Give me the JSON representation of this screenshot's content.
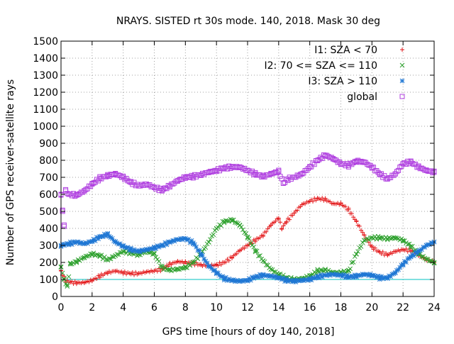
{
  "chart_data": {
    "type": "scatter",
    "title": "NRAYS. SISTED rt 30s mode. 140, 2018. Mask 30 deg",
    "xlabel": "GPS time [hours of doy 140, 2018]",
    "ylabel": "Number of GPS receiver-satellite rays",
    "xlim": [
      0,
      24
    ],
    "ylim": [
      0,
      1500
    ],
    "x_ticks": [
      0,
      2,
      4,
      6,
      8,
      10,
      12,
      14,
      16,
      18,
      20,
      22,
      24
    ],
    "y_ticks": [
      0,
      100,
      200,
      300,
      400,
      500,
      600,
      700,
      800,
      900,
      1000,
      1100,
      1200,
      1300,
      1400,
      1500
    ],
    "grid": true,
    "legend_position": "top-right",
    "reference_line": {
      "y": 100,
      "color": "#00c0c0"
    },
    "series": [
      {
        "name": "I1: SZA < 70",
        "marker": "+",
        "color": "#e41a1c",
        "points": [
          [
            0,
            150
          ],
          [
            0.3,
            90
          ],
          [
            0.6,
            85
          ],
          [
            1,
            80
          ],
          [
            1.5,
            82
          ],
          [
            2,
            95
          ],
          [
            2.5,
            120
          ],
          [
            3,
            140
          ],
          [
            3.5,
            150
          ],
          [
            4,
            140
          ],
          [
            4.5,
            135
          ],
          [
            5,
            135
          ],
          [
            5.5,
            145
          ],
          [
            6,
            150
          ],
          [
            6.5,
            160
          ],
          [
            7,
            190
          ],
          [
            7.5,
            205
          ],
          [
            8,
            200
          ],
          [
            8.5,
            195
          ],
          [
            9,
            185
          ],
          [
            9.5,
            180
          ],
          [
            10,
            185
          ],
          [
            10.5,
            200
          ],
          [
            11,
            230
          ],
          [
            11.5,
            270
          ],
          [
            12,
            300
          ],
          [
            12.5,
            330
          ],
          [
            13,
            360
          ],
          [
            13.5,
            420
          ],
          [
            14,
            460
          ],
          [
            14.2,
            400
          ],
          [
            14.5,
            440
          ],
          [
            15,
            490
          ],
          [
            15.5,
            540
          ],
          [
            16,
            560
          ],
          [
            16.5,
            575
          ],
          [
            17,
            570
          ],
          [
            17.5,
            545
          ],
          [
            18,
            545
          ],
          [
            18.5,
            510
          ],
          [
            19,
            440
          ],
          [
            19.5,
            360
          ],
          [
            20,
            290
          ],
          [
            20.5,
            260
          ],
          [
            21,
            245
          ],
          [
            21.5,
            265
          ],
          [
            22,
            275
          ],
          [
            22.5,
            270
          ],
          [
            23,
            245
          ],
          [
            23.5,
            215
          ],
          [
            24,
            205
          ]
        ]
      },
      {
        "name": "I2: 70 <= SZA <= 110",
        "marker": "x",
        "color": "#2ca02c",
        "points": [
          [
            0,
            175
          ],
          [
            0.2,
            100
          ],
          [
            0.4,
            60
          ],
          [
            0.6,
            190
          ],
          [
            1,
            205
          ],
          [
            1.5,
            230
          ],
          [
            2,
            250
          ],
          [
            2.5,
            240
          ],
          [
            3,
            215
          ],
          [
            3.5,
            240
          ],
          [
            4,
            265
          ],
          [
            4.5,
            255
          ],
          [
            5,
            245
          ],
          [
            5.5,
            265
          ],
          [
            6,
            250
          ],
          [
            6.5,
            170
          ],
          [
            7,
            155
          ],
          [
            7.5,
            160
          ],
          [
            8,
            170
          ],
          [
            8.5,
            200
          ],
          [
            9,
            250
          ],
          [
            9.5,
            320
          ],
          [
            10,
            400
          ],
          [
            10.5,
            440
          ],
          [
            11,
            450
          ],
          [
            11.5,
            420
          ],
          [
            12,
            350
          ],
          [
            12.5,
            270
          ],
          [
            13,
            210
          ],
          [
            13.5,
            160
          ],
          [
            14,
            130
          ],
          [
            14.5,
            110
          ],
          [
            15,
            100
          ],
          [
            15.5,
            105
          ],
          [
            16,
            120
          ],
          [
            16.5,
            150
          ],
          [
            17,
            155
          ],
          [
            17.5,
            140
          ],
          [
            18,
            140
          ],
          [
            18.5,
            150
          ],
          [
            19,
            250
          ],
          [
            19.5,
            330
          ],
          [
            20,
            345
          ],
          [
            20.5,
            345
          ],
          [
            21,
            340
          ],
          [
            21.5,
            345
          ],
          [
            22,
            330
          ],
          [
            22.5,
            295
          ],
          [
            23,
            250
          ],
          [
            23.5,
            220
          ],
          [
            24,
            200
          ]
        ]
      },
      {
        "name": "I3: SZA > 110",
        "marker": "*",
        "color": "#1f77d4",
        "points": [
          [
            0,
            300
          ],
          [
            0.5,
            310
          ],
          [
            1,
            320
          ],
          [
            1.5,
            310
          ],
          [
            2,
            325
          ],
          [
            2.5,
            350
          ],
          [
            3,
            365
          ],
          [
            3.5,
            320
          ],
          [
            4,
            295
          ],
          [
            4.5,
            275
          ],
          [
            5,
            265
          ],
          [
            5.5,
            275
          ],
          [
            6,
            285
          ],
          [
            6.5,
            300
          ],
          [
            7,
            320
          ],
          [
            7.5,
            335
          ],
          [
            8,
            340
          ],
          [
            8.5,
            315
          ],
          [
            9,
            250
          ],
          [
            9.5,
            180
          ],
          [
            10,
            140
          ],
          [
            10.5,
            105
          ],
          [
            11,
            95
          ],
          [
            11.5,
            90
          ],
          [
            12,
            95
          ],
          [
            12.5,
            115
          ],
          [
            13,
            125
          ],
          [
            13.5,
            120
          ],
          [
            14,
            110
          ],
          [
            14.5,
            95
          ],
          [
            15,
            90
          ],
          [
            15.5,
            95
          ],
          [
            16,
            100
          ],
          [
            16.5,
            115
          ],
          [
            17,
            125
          ],
          [
            17.5,
            130
          ],
          [
            18,
            125
          ],
          [
            18.5,
            115
          ],
          [
            19,
            120
          ],
          [
            19.5,
            130
          ],
          [
            20,
            125
          ],
          [
            20.5,
            110
          ],
          [
            21,
            110
          ],
          [
            21.5,
            140
          ],
          [
            22,
            190
          ],
          [
            22.5,
            235
          ],
          [
            23,
            265
          ],
          [
            23.5,
            300
          ],
          [
            24,
            320
          ]
        ]
      },
      {
        "name": "global",
        "marker": "square",
        "color": "#b040e0",
        "points": [
          [
            0,
            600
          ],
          [
            0.1,
            500
          ],
          [
            0.2,
            420
          ],
          [
            0.3,
            620
          ],
          [
            0.5,
            600
          ],
          [
            1,
            595
          ],
          [
            1.5,
            620
          ],
          [
            2,
            660
          ],
          [
            2.5,
            695
          ],
          [
            3,
            710
          ],
          [
            3.5,
            720
          ],
          [
            4,
            700
          ],
          [
            4.5,
            670
          ],
          [
            5,
            650
          ],
          [
            5.5,
            660
          ],
          [
            6,
            640
          ],
          [
            6.5,
            625
          ],
          [
            7,
            650
          ],
          [
            7.5,
            680
          ],
          [
            8,
            700
          ],
          [
            8.5,
            705
          ],
          [
            9,
            715
          ],
          [
            9.5,
            730
          ],
          [
            10,
            740
          ],
          [
            10.5,
            755
          ],
          [
            11,
            760
          ],
          [
            11.5,
            760
          ],
          [
            12,
            740
          ],
          [
            12.5,
            720
          ],
          [
            13,
            705
          ],
          [
            13.5,
            720
          ],
          [
            14,
            735
          ],
          [
            14.3,
            665
          ],
          [
            14.6,
            690
          ],
          [
            15,
            700
          ],
          [
            15.5,
            720
          ],
          [
            16,
            760
          ],
          [
            16.5,
            800
          ],
          [
            17,
            830
          ],
          [
            17.5,
            810
          ],
          [
            18,
            780
          ],
          [
            18.5,
            770
          ],
          [
            19,
            795
          ],
          [
            19.5,
            790
          ],
          [
            20,
            760
          ],
          [
            20.5,
            720
          ],
          [
            21,
            690
          ],
          [
            21.5,
            720
          ],
          [
            22,
            780
          ],
          [
            22.5,
            790
          ],
          [
            23,
            760
          ],
          [
            23.5,
            740
          ],
          [
            24,
            730
          ]
        ]
      }
    ]
  }
}
